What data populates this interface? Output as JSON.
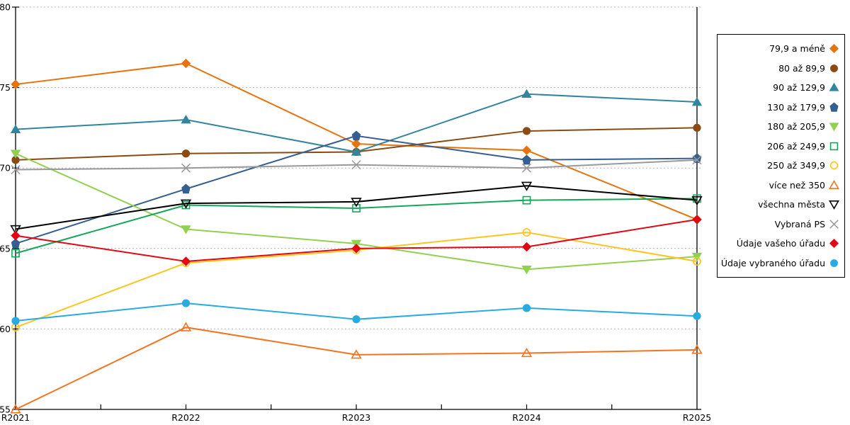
{
  "chart_data": {
    "type": "line",
    "title": "",
    "xlabel": "",
    "ylabel": "",
    "x_categories": [
      "R2021",
      "R2022",
      "R2023",
      "R2024",
      "R2025"
    ],
    "ylim": [
      55,
      80
    ],
    "yticks": [
      55,
      60,
      65,
      70,
      75,
      80
    ],
    "grid": "horizontal-dashed",
    "legend_position": "right",
    "series": [
      {
        "name": "79,9 a méně",
        "color": "#E8720C",
        "marker": "diamond",
        "fill": "filled",
        "values": [
          75.2,
          76.5,
          71.5,
          71.1,
          66.8
        ]
      },
      {
        "name": "80 až 89,9",
        "color": "#8B4A12",
        "marker": "circle",
        "fill": "filled",
        "values": [
          70.5,
          70.9,
          71.0,
          72.3,
          72.5
        ]
      },
      {
        "name": "90 až 129,9",
        "color": "#31859C",
        "marker": "triangle-up",
        "fill": "filled",
        "values": [
          72.4,
          73.0,
          71.0,
          74.6,
          74.1
        ]
      },
      {
        "name": "130 až 179,9",
        "color": "#365F91",
        "marker": "pentagon",
        "fill": "filled",
        "values": [
          65.3,
          68.7,
          72.0,
          70.5,
          70.6
        ]
      },
      {
        "name": "180 až 205,9",
        "color": "#92D050",
        "marker": "triangle-down",
        "fill": "filled",
        "values": [
          70.9,
          66.2,
          65.3,
          63.7,
          64.5
        ]
      },
      {
        "name": "206 až 249,9",
        "color": "#14A75A",
        "marker": "square",
        "fill": "open",
        "values": [
          64.7,
          67.7,
          67.5,
          68.0,
          68.1
        ]
      },
      {
        "name": "250 až 349,9",
        "color": "#FFC41E",
        "marker": "circle",
        "fill": "open",
        "values": [
          60.1,
          64.1,
          64.9,
          66.0,
          64.2
        ]
      },
      {
        "name": "více než 350",
        "color": "#F4731F",
        "marker": "triangle-up",
        "fill": "open",
        "values": [
          55.0,
          60.1,
          58.4,
          58.5,
          58.7
        ]
      },
      {
        "name": "všechna města",
        "color": "#000000",
        "marker": "triangle-down",
        "fill": "open",
        "values": [
          66.2,
          67.8,
          67.9,
          68.9,
          68.0
        ]
      },
      {
        "name": "Vybraná PS",
        "color": "#999999",
        "marker": "x",
        "fill": "open",
        "values": [
          69.9,
          70.0,
          70.2,
          70.0,
          70.5
        ]
      },
      {
        "name": "Údaje vašeho úřadu",
        "color": "#E30613",
        "marker": "diamond",
        "fill": "filled",
        "values": [
          65.8,
          64.2,
          65.0,
          65.1,
          66.8
        ]
      },
      {
        "name": "Údaje vybraného úřadu",
        "color": "#29ABE2",
        "marker": "circle",
        "fill": "filled",
        "values": [
          60.5,
          61.6,
          60.6,
          61.3,
          60.8
        ]
      }
    ],
    "layout": {
      "axis_color": "#000000",
      "grid_color": "#B3B3B3",
      "plot_left": 22,
      "plot_right": 984,
      "grid_right": 990,
      "plot_top": 10,
      "plot_bottom": 578
    }
  }
}
